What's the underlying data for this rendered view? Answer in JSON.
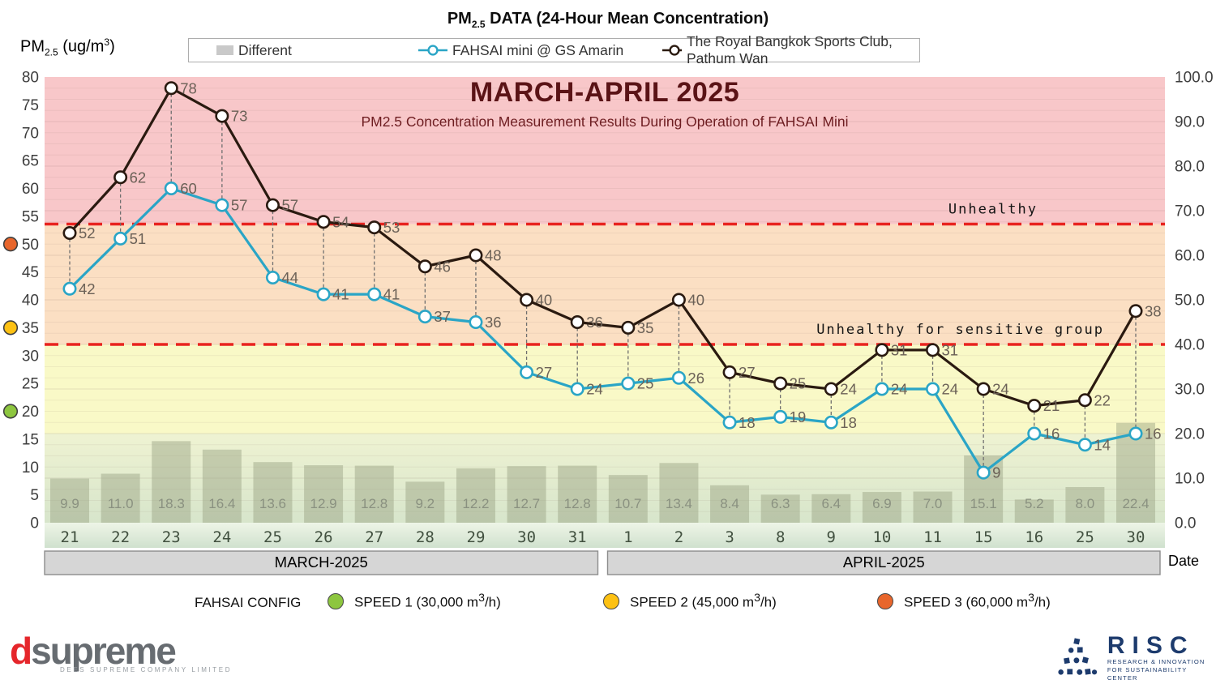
{
  "titles": {
    "top": {
      "pm": "PM",
      "sub": "2.5",
      "rest": " DATA (24-Hour Mean Concentration)"
    },
    "axis_label": {
      "pm": "PM",
      "sub": "2.5",
      "mid": " (ug/m",
      "sup": "3",
      "end": ")"
    }
  },
  "legend": {
    "different": "Different",
    "fahsai": "FAHSAI mini @ GS Amarin",
    "royal": "The Royal Bangkok Sports Club, Pathum Wan"
  },
  "chart_data": {
    "type": "combo-bar-line",
    "title": "MARCH-APRIL 2025",
    "subtitle": "PM2.5 Concentration Measurement Results During Operation of FAHSAI Mini",
    "categories": [
      "21",
      "22",
      "23",
      "24",
      "25",
      "26",
      "27",
      "28",
      "29",
      "30",
      "31",
      "1",
      "2",
      "3",
      "8",
      "9",
      "10",
      "11",
      "15",
      "16",
      "25",
      "30"
    ],
    "month_groups": [
      {
        "label": "MARCH-2025",
        "span": 11
      },
      {
        "label": "APRIL-2025",
        "span": 11
      }
    ],
    "series": [
      {
        "name": "Different",
        "type": "bar",
        "axis": "right",
        "color": "rgba(150,159,129,0.45)",
        "label_color": "#8a9180",
        "values": [
          9.9,
          11.0,
          18.3,
          16.4,
          13.6,
          12.9,
          12.8,
          9.2,
          12.2,
          12.7,
          12.8,
          10.7,
          13.4,
          8.4,
          6.3,
          6.4,
          6.9,
          7.0,
          15.1,
          5.2,
          8.0,
          22.4
        ]
      },
      {
        "name": "FAHSAI mini @ GS Amarin",
        "type": "line",
        "axis": "left",
        "color": "#2aa5c6",
        "label_color": "#6b6157",
        "values": [
          42,
          51,
          60,
          57,
          44,
          41,
          41,
          37,
          36,
          27,
          24,
          25,
          26,
          18,
          19,
          18,
          24,
          24,
          9,
          16,
          14,
          16
        ]
      },
      {
        "name": "The Royal Bangkok Sports Club, Pathum Wan",
        "type": "line",
        "axis": "left",
        "color": "#2a1a10",
        "label_color": "#6b6157",
        "values": [
          52,
          62,
          78,
          73,
          57,
          54,
          53,
          46,
          48,
          40,
          36,
          35,
          40,
          27,
          25,
          24,
          31,
          31,
          24,
          21,
          22,
          38
        ]
      }
    ],
    "left_axis": {
      "min": 0,
      "max": 80,
      "step": 5
    },
    "right_axis": {
      "min": 0,
      "max": 100,
      "step": 10,
      "decimals": 1
    },
    "thresholds": [
      {
        "label": "Unhealthy",
        "left_value": 53.6,
        "color": "#e8231f"
      },
      {
        "label": "Unhealthy for sensitive group",
        "left_value": 32,
        "color": "#e8231f"
      }
    ],
    "zones": [
      {
        "from": 53.6,
        "to": 80,
        "color": "#f8c7c9"
      },
      {
        "from": 32,
        "to": 53.6,
        "color": "#fbdfc3"
      },
      {
        "from": 16,
        "to": 32,
        "color": "#f9f9c7"
      },
      {
        "from": 0,
        "to": 16,
        "color_top": "#eff3d2",
        "color_bottom": "#d7e5cb"
      }
    ],
    "speed_markers": [
      {
        "left_value": 50,
        "color": "#e8662c"
      },
      {
        "left_value": 35,
        "color": "#fdc113"
      },
      {
        "left_value": 20,
        "color": "#8dc63f"
      }
    ],
    "x_axis_label": "Date",
    "month_band_color": "#d6d6d6"
  },
  "config_legend": {
    "title": "FAHSAI CONFIG",
    "items": [
      {
        "label_main": "SPEED 1 (30,000 m",
        "sup": "3",
        "label_end": "/h)",
        "color": "#8dc63f"
      },
      {
        "label_main": "SPEED 2 (45,000 m",
        "sup": "3",
        "label_end": "/h)",
        "color": "#fdc113"
      },
      {
        "label_main": "SPEED 3 (60,000 m",
        "sup": "3",
        "label_end": "/h)",
        "color": "#e8662c"
      }
    ]
  },
  "footer": {
    "dsupreme": {
      "d": "d",
      "rest": "supreme",
      "tagline": "DEES SUPREME COMPANY LIMITED"
    },
    "risc": {
      "name": "RISC",
      "line1": "RESEARCH & INNOVATION",
      "line2": "FOR SUSTAINABILITY CENTER"
    }
  }
}
